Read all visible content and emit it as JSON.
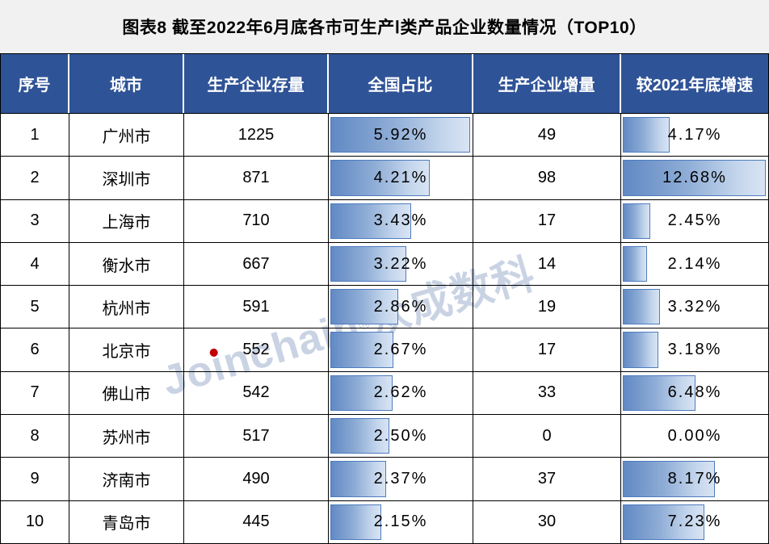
{
  "title": "图表8 截至2022年6月底各市可生产Ⅰ类产品企业数量情况（TOP10）",
  "watermark": {
    "prefix": "Jo",
    "dotted_i": "i",
    "suffix": "nchain",
    "registered": "®",
    "cjk": "众成数科",
    "color": "#C9D3E3",
    "dot_color": "#C00000"
  },
  "colors": {
    "page_background": "#F1F1F1",
    "table_background": "#FFFFFF",
    "header_background": "#2F5397",
    "header_text": "#FFFFFF",
    "grid_line": "#000000",
    "bar_border": "#4F7CBE",
    "bar_gradient_start": "#6189C4",
    "bar_gradient_end": "#D9E4F3",
    "body_text": "#000000"
  },
  "chart_data": {
    "type": "table",
    "title": "图表8 截至2022年6月底各市可生产Ⅰ类产品企业数量情况（TOP10）",
    "columns": [
      "序号",
      "城市",
      "生产企业存量",
      "全国占比",
      "生产企业增量",
      "较2021年底增速"
    ],
    "bar_columns": [
      "全国占比",
      "较2021年底增速"
    ],
    "share_axis_max": 5.92,
    "growth_axis_max": 12.68,
    "rows": [
      {
        "rank": "1",
        "city": "广州市",
        "stock": "1225",
        "share_display": "5.92%",
        "share_value": 5.92,
        "increment": "49",
        "growth_display": "4.17%",
        "growth_value": 4.17
      },
      {
        "rank": "2",
        "city": "深圳市",
        "stock": "871",
        "share_display": "4.21%",
        "share_value": 4.21,
        "increment": "98",
        "growth_display": "12.68%",
        "growth_value": 12.68
      },
      {
        "rank": "3",
        "city": "上海市",
        "stock": "710",
        "share_display": "3.43%",
        "share_value": 3.43,
        "increment": "17",
        "growth_display": "2.45%",
        "growth_value": 2.45
      },
      {
        "rank": "4",
        "city": "衡水市",
        "stock": "667",
        "share_display": "3.22%",
        "share_value": 3.22,
        "increment": "14",
        "growth_display": "2.14%",
        "growth_value": 2.14
      },
      {
        "rank": "5",
        "city": "杭州市",
        "stock": "591",
        "share_display": "2.86%",
        "share_value": 2.86,
        "increment": "19",
        "growth_display": "3.32%",
        "growth_value": 3.32
      },
      {
        "rank": "6",
        "city": "北京市",
        "stock": "552",
        "share_display": "2.67%",
        "share_value": 2.67,
        "increment": "17",
        "growth_display": "3.18%",
        "growth_value": 3.18
      },
      {
        "rank": "7",
        "city": "佛山市",
        "stock": "542",
        "share_display": "2.62%",
        "share_value": 2.62,
        "increment": "33",
        "growth_display": "6.48%",
        "growth_value": 6.48
      },
      {
        "rank": "8",
        "city": "苏州市",
        "stock": "517",
        "share_display": "2.50%",
        "share_value": 2.5,
        "increment": "0",
        "growth_display": "0.00%",
        "growth_value": 0.0
      },
      {
        "rank": "9",
        "city": "济南市",
        "stock": "490",
        "share_display": "2.37%",
        "share_value": 2.37,
        "increment": "37",
        "growth_display": "8.17%",
        "growth_value": 8.17
      },
      {
        "rank": "10",
        "city": "青岛市",
        "stock": "445",
        "share_display": "2.15%",
        "share_value": 2.15,
        "increment": "30",
        "growth_display": "7.23%",
        "growth_value": 7.23
      }
    ]
  }
}
